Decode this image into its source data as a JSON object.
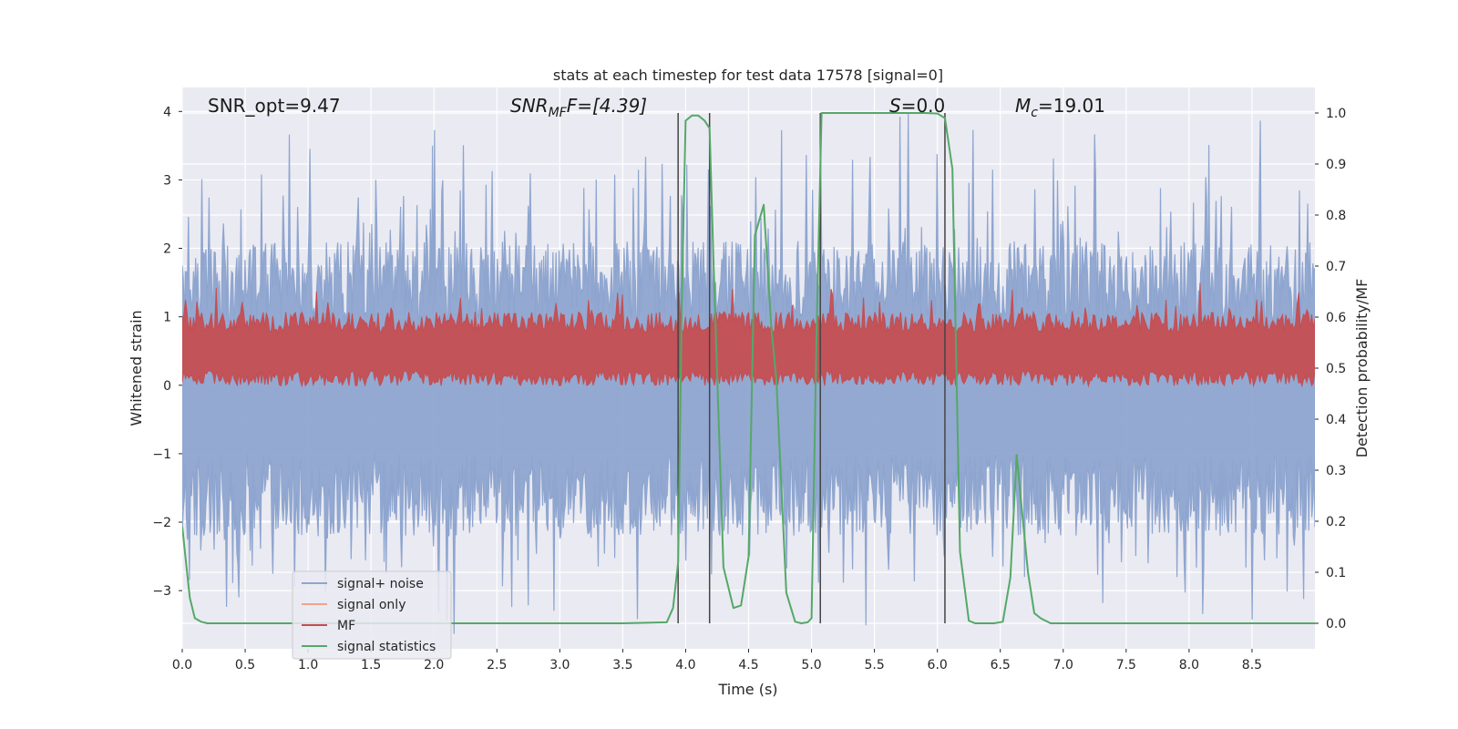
{
  "chart_data": {
    "type": "line",
    "title": "stats at each timestep for test data 17578 [signal=0]",
    "xlabel": "Time (s)",
    "ylabel": "Whitened strain",
    "y2label": "Detection probability/MF",
    "xlim": [
      0,
      9.0
    ],
    "ylim": [
      -3.85,
      4.35
    ],
    "y2lim": [
      -0.05,
      1.05
    ],
    "xticks": [
      "0.0",
      "0.5",
      "1.0",
      "1.5",
      "2.0",
      "2.5",
      "3.0",
      "3.5",
      "4.0",
      "4.5",
      "5.0",
      "5.5",
      "6.0",
      "6.5",
      "7.0",
      "7.5",
      "8.0",
      "8.5"
    ],
    "yticks": [
      "4",
      "3",
      "2",
      "1",
      "0",
      "−1",
      "−2",
      "−3"
    ],
    "y2ticks": [
      "1.0",
      "0.9",
      "0.8",
      "0.7",
      "0.6",
      "0.5",
      "0.4",
      "0.3",
      "0.2",
      "0.1",
      "0.0"
    ],
    "grid": true,
    "legend_position": "lower-left",
    "annotations": {
      "snr_opt": "SNR_opt=9.47",
      "snr_mf_main": "SNR",
      "snr_mf_sub": "MF",
      "snr_mf_rest": "F=[4.39]",
      "s_main": "S",
      "s_rest": "=0.0",
      "mc_main": "M",
      "mc_sub": "c",
      "mc_rest": "=19.01"
    },
    "vlines": [
      3.94,
      4.19,
      5.07,
      6.06
    ],
    "series": [
      {
        "name": "signal+ noise",
        "color": "#8ea5cf",
        "noise_envelope": {
          "upper_mean": 1.5,
          "lower_mean": -1.6,
          "peak_max": 3.7,
          "trough_min": -3.5
        }
      },
      {
        "name": "signal only",
        "color": "#f0a58a",
        "values": []
      },
      {
        "name": "MF",
        "color": "#c44e52",
        "axis": "right",
        "band": [
          0.48,
          0.59
        ]
      },
      {
        "name": "signal statistics",
        "color": "#55a868",
        "axis": "right",
        "x": [
          0.0,
          0.03,
          0.06,
          0.1,
          0.15,
          0.2,
          0.3,
          0.5,
          1.0,
          2.0,
          3.0,
          3.5,
          3.85,
          3.9,
          3.94,
          3.97,
          4.0,
          4.05,
          4.1,
          4.15,
          4.19,
          4.22,
          4.3,
          4.38,
          4.44,
          4.5,
          4.55,
          4.62,
          4.68,
          4.72,
          4.8,
          4.87,
          4.92,
          4.97,
          5.0,
          5.04,
          5.08,
          5.13,
          5.5,
          5.9,
          6.0,
          6.06,
          6.12,
          6.18,
          6.25,
          6.3,
          6.35,
          6.45,
          6.52,
          6.58,
          6.63,
          6.68,
          6.72,
          6.77,
          6.82,
          6.9,
          7.0,
          9.0
        ],
        "values": [
          0.19,
          0.12,
          0.05,
          0.01,
          0.003,
          0.0,
          0.0,
          0.0,
          0.0,
          0.0,
          0.0,
          0.0,
          0.002,
          0.03,
          0.12,
          0.64,
          0.985,
          0.995,
          0.995,
          0.985,
          0.97,
          0.72,
          0.11,
          0.03,
          0.035,
          0.13,
          0.76,
          0.82,
          0.58,
          0.48,
          0.06,
          0.003,
          0.0,
          0.002,
          0.01,
          0.57,
          1.0,
          1.0,
          1.0,
          1.0,
          0.999,
          0.99,
          0.89,
          0.14,
          0.005,
          0.0,
          0.0,
          0.0,
          0.003,
          0.09,
          0.33,
          0.2,
          0.1,
          0.02,
          0.01,
          0.0,
          0.0,
          0.0
        ]
      }
    ]
  }
}
